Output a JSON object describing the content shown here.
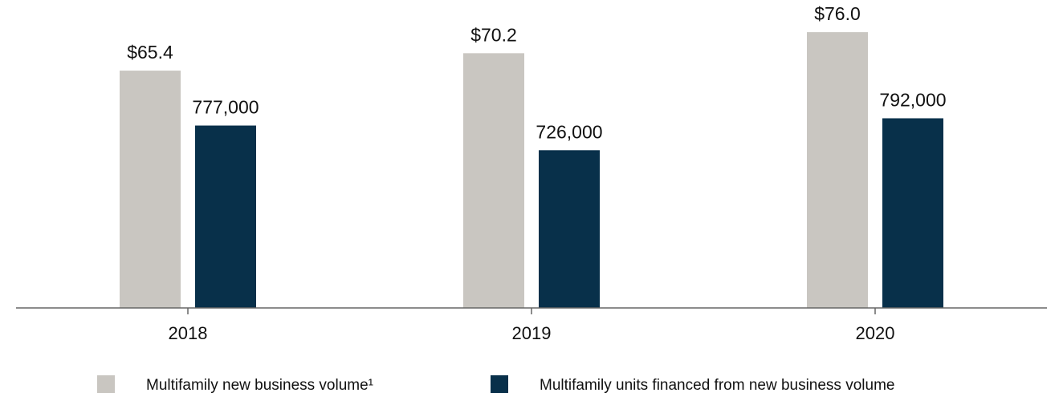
{
  "chart_data": {
    "type": "bar",
    "categories": [
      "2018",
      "2019",
      "2020"
    ],
    "series": [
      {
        "name": "Multifamily new business volume¹",
        "color": "#c9c6c1",
        "values": [
          65.4,
          70.2,
          76.0
        ],
        "value_labels": [
          "$65.4",
          "$70.2",
          "$76.0"
        ]
      },
      {
        "name": "Multifamily units financed from new business volume",
        "color": "#08304a",
        "values": [
          777000,
          726000,
          792000
        ],
        "value_labels": [
          "777,000",
          "726,000",
          "792,000"
        ],
        "axis": "y2"
      }
    ],
    "ylim": [
      0,
      80
    ],
    "y2lim": [
      400000,
      1000000
    ],
    "legend": "bottom"
  }
}
